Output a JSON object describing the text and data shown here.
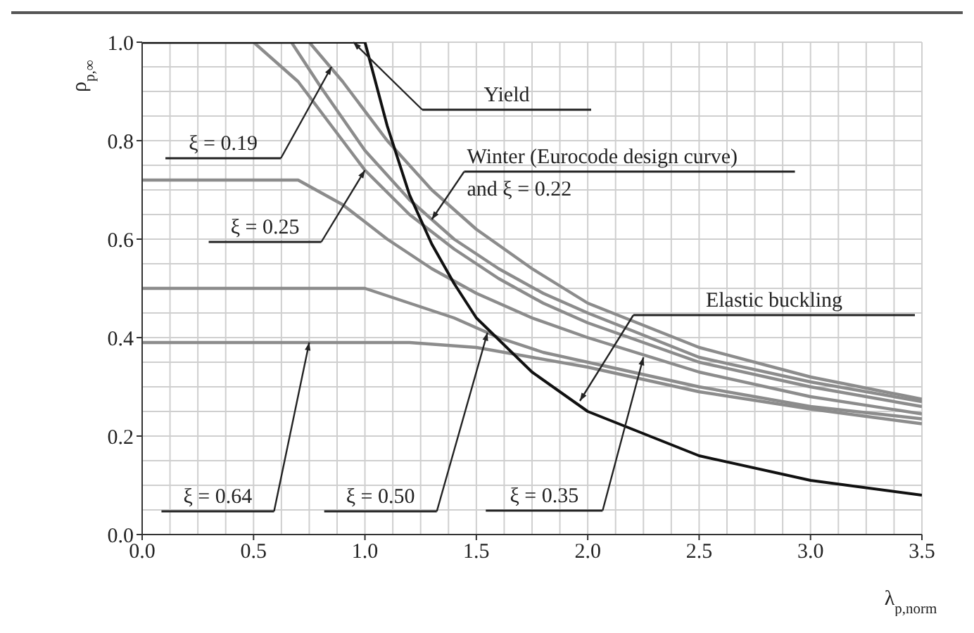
{
  "chart_data": {
    "type": "line",
    "xlabel": "λ$_{p,norm}$",
    "ylabel": "ρ$_{p,∞}$",
    "xlim": [
      0,
      3.5
    ],
    "ylim": [
      0,
      1
    ],
    "xticks": [
      {
        "value": 0,
        "label": "0.0"
      },
      {
        "value": 0.5,
        "label": "0.5"
      },
      {
        "value": 1,
        "label": "1.0"
      },
      {
        "value": 1.5,
        "label": "1.5"
      },
      {
        "value": 2,
        "label": "2.0"
      },
      {
        "value": 2.5,
        "label": "2.5"
      },
      {
        "value": 3,
        "label": "3.0"
      },
      {
        "value": 3.5,
        "label": "3.5"
      }
    ],
    "yticks": [
      {
        "value": 0,
        "label": "0.0"
      },
      {
        "value": 0.2,
        "label": "0.2"
      },
      {
        "value": 0.4,
        "label": "0.4"
      },
      {
        "value": 0.6,
        "label": "0.6"
      },
      {
        "value": 0.8,
        "label": "0.8"
      },
      {
        "value": 1,
        "label": "1.0"
      }
    ],
    "grid": true,
    "marker": "none",
    "line_style": "solid",
    "series": [
      {
        "color": "#8c8c8c",
        "x": [
          0,
          0.75,
          0.9,
          1.1,
          1.3,
          1.5,
          1.75,
          2.0,
          2.5,
          3.0,
          3.5
        ],
        "values": [
          1,
          1,
          0.92,
          0.8,
          0.7,
          0.62,
          0.54,
          0.47,
          0.38,
          0.32,
          0.275
        ]
      },
      {
        "color": "#8c8c8c",
        "x": [
          0,
          0.67,
          0.8,
          1.0,
          1.2,
          1.4,
          1.6,
          1.8,
          2.0,
          2.5,
          3.0,
          3.5
        ],
        "values": [
          1,
          1,
          0.91,
          0.78,
          0.68,
          0.6,
          0.54,
          0.49,
          0.45,
          0.36,
          0.31,
          0.27
        ]
      },
      {
        "color": "#8c8c8c",
        "x": [
          0,
          0.5,
          0.7,
          0.9,
          1.0,
          1.2,
          1.4,
          1.6,
          1.8,
          2.0,
          2.5,
          3.0,
          3.5
        ],
        "values": [
          1,
          1,
          0.92,
          0.8,
          0.74,
          0.65,
          0.58,
          0.52,
          0.47,
          0.43,
          0.35,
          0.3,
          0.26
        ]
      },
      {
        "color": "#8c8c8c",
        "x": [
          0,
          0.7,
          0.9,
          1.1,
          1.3,
          1.5,
          1.75,
          2.0,
          2.5,
          3.0,
          3.5
        ],
        "values": [
          0.72,
          0.72,
          0.67,
          0.6,
          0.54,
          0.49,
          0.44,
          0.4,
          0.33,
          0.28,
          0.245
        ]
      },
      {
        "color": "#8c8c8c",
        "x": [
          0,
          1.0,
          1.2,
          1.4,
          1.6,
          1.8,
          2.0,
          2.5,
          3.0,
          3.5
        ],
        "values": [
          0.5,
          0.5,
          0.47,
          0.44,
          0.4,
          0.37,
          0.35,
          0.3,
          0.26,
          0.235
        ]
      },
      {
        "color": "#8c8c8c",
        "x": [
          0,
          1.2,
          1.5,
          1.75,
          2.0,
          2.5,
          3.0,
          3.5
        ],
        "values": [
          0.39,
          0.39,
          0.38,
          0.36,
          0.34,
          0.29,
          0.255,
          0.225
        ]
      },
      {
        "color": "#111111",
        "x": [
          0,
          1.0
        ],
        "values": [
          1,
          1
        ]
      },
      {
        "color": "#111111",
        "x": [
          1.0,
          1.1,
          1.2,
          1.3,
          1.4,
          1.5,
          1.75,
          2.0,
          2.5,
          3.0,
          3.5
        ],
        "values": [
          1,
          0.83,
          0.69,
          0.59,
          0.51,
          0.44,
          0.33,
          0.25,
          0.16,
          0.11,
          0.08
        ]
      }
    ],
    "annotations": [
      "Yield",
      {
        "text": "ξ = 0.19",
        "x": 0.85,
        "y": 0.95
      },
      {
        "text": "Winter (Eurocode design curve)\nand ξ = 0.22",
        "x": 1.3,
        "y": 0.64
      },
      {
        "text": "ξ = 0.25",
        "x": 1.0,
        "y": 0.74
      },
      "Elastic buckling",
      {
        "text": "ξ = 0.64",
        "x": 0.75,
        "y": 0.39
      },
      {
        "text": "ξ = 0.50",
        "x": 1.55,
        "y": 0.41
      },
      {
        "text": "ξ = 0.35",
        "x": 2.25,
        "y": 0.36
      }
    ]
  }
}
